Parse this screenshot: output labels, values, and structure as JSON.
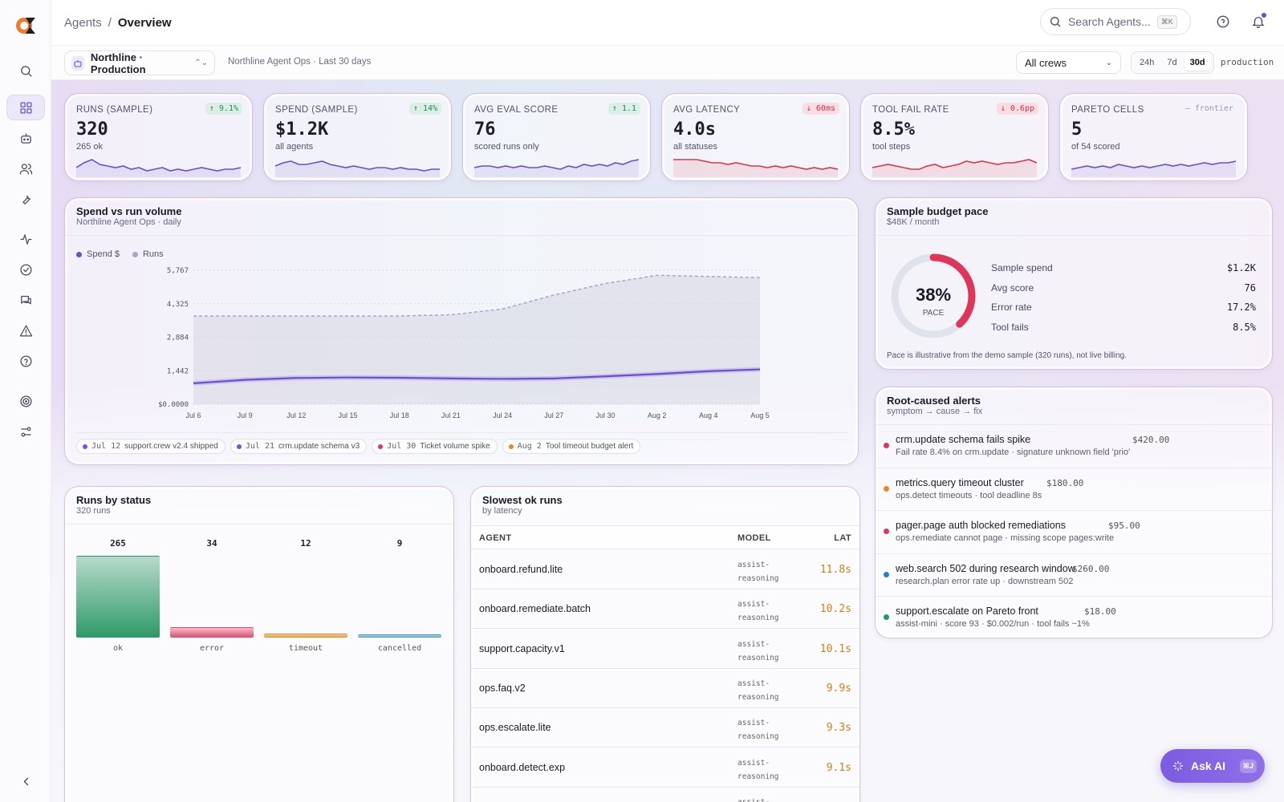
{
  "header": {
    "crumb_root": "Agents",
    "crumb_sep": "/",
    "crumb_current": "Overview",
    "search_placeholder": "Search Agents...",
    "search_shortcut": "⌘K"
  },
  "toolbar": {
    "project": "Northline · Production",
    "subtitle": "Northline Agent Ops · Last 30 days",
    "crew_filter": "All crews",
    "ranges": [
      "24h",
      "7d",
      "30d"
    ],
    "active_range": "30d",
    "environment": "production"
  },
  "kpis": [
    {
      "label": "RUNS (SAMPLE)",
      "value": "320",
      "note": "265 ok",
      "delta": "9.1%",
      "dir": "up",
      "arrow": "↑",
      "spark": [
        5,
        8,
        10,
        7,
        6,
        5,
        6,
        4,
        5,
        3,
        4,
        5,
        3,
        4,
        3,
        4,
        5,
        4,
        3,
        4,
        4,
        5
      ],
      "color": "#6b4fd1"
    },
    {
      "label": "SPEND (SAMPLE)",
      "value": "$1.2K",
      "note": "all agents",
      "delta": "14%",
      "dir": "up",
      "arrow": "↑",
      "spark": [
        6,
        8,
        9,
        7,
        7,
        8,
        9,
        7,
        6,
        5,
        6,
        5,
        4,
        5,
        5,
        4,
        5,
        4,
        4,
        3,
        4,
        4
      ],
      "color": "#6b4fd1"
    },
    {
      "label": "AVG EVAL SCORE",
      "value": "76",
      "note": "scored runs only",
      "delta": "1.1",
      "dir": "up",
      "arrow": "↑",
      "spark": [
        5,
        6,
        6,
        5,
        6,
        5,
        6,
        5,
        5,
        6,
        5,
        4,
        6,
        5,
        7,
        6,
        7,
        6,
        8,
        7,
        9,
        10
      ],
      "color": "#6b4fd1"
    },
    {
      "label": "AVG LATENCY",
      "value": "4.0s",
      "note": "all statuses",
      "delta": "60ms",
      "dir": "down",
      "arrow": "↓",
      "spark": [
        10,
        10,
        10,
        10,
        9,
        8,
        8,
        7,
        8,
        7,
        6,
        6,
        5,
        6,
        5,
        6,
        5,
        4,
        5,
        4,
        5,
        4
      ],
      "color": "#d8364f"
    },
    {
      "label": "TOOL FAIL RATE",
      "value": "8.5%",
      "note": "tool steps",
      "delta": "0.6pp",
      "dir": "down",
      "arrow": "↓",
      "spark": [
        5,
        6,
        7,
        6,
        5,
        4,
        4,
        6,
        7,
        5,
        6,
        7,
        9,
        8,
        9,
        8,
        7,
        8,
        8,
        9,
        10,
        8
      ],
      "color": "#d8364f"
    },
    {
      "label": "PARETO CELLS",
      "value": "5",
      "note": "of 54 scored",
      "delta": "frontier",
      "dir": "neutral",
      "arrow": "—",
      "spark": [
        4,
        5,
        6,
        5,
        6,
        5,
        7,
        6,
        5,
        6,
        5,
        6,
        7,
        6,
        7,
        6,
        7,
        8,
        7,
        8,
        8,
        9
      ],
      "color": "#6b4fd1"
    }
  ],
  "spend_chart": {
    "title": "Spend vs run volume",
    "subtitle": "Northline Agent Ops · daily",
    "legend": [
      {
        "name": "Spend $",
        "color": "#6b4fd1"
      },
      {
        "name": "Runs",
        "color": "#a5a8c2"
      }
    ],
    "events": [
      {
        "date": "Jul 12",
        "text": "support.crew v2.4 shipped",
        "color": "#7c4fe0"
      },
      {
        "date": "Jul 21",
        "text": "crm.update schema v3",
        "color": "#7c4fe0"
      },
      {
        "date": "Jul 30",
        "text": "Ticket volume spike",
        "color": "#e0355a"
      },
      {
        "date": "Aug 2",
        "text": "Tool timeout budget alert",
        "color": "#e58a1f"
      }
    ]
  },
  "chart_data": {
    "type": "area",
    "x": [
      "Jul 6",
      "Jul 9",
      "Jul 12",
      "Jul 15",
      "Jul 18",
      "Jul 21",
      "Jul 24",
      "Jul 27",
      "Jul 30",
      "Aug 2",
      "Aug 4",
      "Aug 5"
    ],
    "series": [
      {
        "name": "Runs",
        "values": [
          3800,
          3800,
          3800,
          3800,
          3800,
          3850,
          4100,
          4700,
          5200,
          5550,
          5500,
          5450
        ]
      },
      {
        "name": "Spend $",
        "values": [
          900,
          1050,
          1130,
          1150,
          1140,
          1110,
          1090,
          1110,
          1200,
          1300,
          1420,
          1500
        ]
      }
    ],
    "yticks": [
      "$0.0000",
      "1,442",
      "2,884",
      "4,325",
      "5,767"
    ],
    "ylim": [
      0,
      5767
    ],
    "legend": "top-left"
  },
  "budget": {
    "title": "Sample budget pace",
    "subtitle": "$48K / month",
    "pace_pct": 38,
    "pace_label": "38%",
    "pace_caption": "PACE",
    "rows": [
      {
        "k": "Sample spend",
        "v": "$1.2K"
      },
      {
        "k": "Avg score",
        "v": "76"
      },
      {
        "k": "Error rate",
        "v": "17.2%"
      },
      {
        "k": "Tool fails",
        "v": "8.5%"
      }
    ],
    "footnote": "Pace is illustrative from the demo sample (320 runs), not live billing."
  },
  "alerts": {
    "title": "Root-caused alerts",
    "subtitle": "symptom → cause → fix",
    "items": [
      {
        "title": "crm.update schema fails spike",
        "meta": "Fail rate 8.4% on crm.update · signature unknown field 'prio'",
        "amount": "$420.00",
        "color": "#e0355a"
      },
      {
        "title": "metrics.query timeout cluster",
        "meta": "ops.detect timeouts · tool deadline 8s",
        "amount": "$180.00",
        "color": "#e58a1f"
      },
      {
        "title": "pager.page auth blocked remediations",
        "meta": "ops.remediate cannot page · missing scope pages:write",
        "amount": "$95.00",
        "color": "#e0355a"
      },
      {
        "title": "web.search 502 during research window",
        "meta": "research.plan error rate up · downstream 502",
        "amount": "$260.00",
        "color": "#2481cc"
      },
      {
        "title": "support.escalate on Pareto front",
        "meta": "assist-mini · score 93 · $0.002/run · tool fails ~1%",
        "amount": "$18.00",
        "color": "#1e9a64"
      }
    ]
  },
  "status": {
    "title": "Runs by status",
    "subtitle": "320 runs",
    "bars": [
      {
        "label": "ok",
        "value": 265,
        "color": "#2e9968"
      },
      {
        "label": "error",
        "value": 34,
        "color": "#e0476a"
      },
      {
        "label": "timeout",
        "value": 12,
        "color": "#e58a1f"
      },
      {
        "label": "cancelled",
        "value": 9,
        "color": "#3b9ad6"
      }
    ]
  },
  "slowest": {
    "title": "Slowest ok runs",
    "subtitle": "by latency",
    "headers": {
      "agent": "AGENT",
      "model": "MODEL",
      "lat": "LAT"
    },
    "rows": [
      {
        "agent": "onboard.refund.lite",
        "model": "assist-reasoning",
        "lat": "11.8s"
      },
      {
        "agent": "onboard.remediate.batch",
        "model": "assist-reasoning",
        "lat": "10.2s"
      },
      {
        "agent": "support.capacity.v1",
        "model": "assist-reasoning",
        "lat": "10.1s"
      },
      {
        "agent": "ops.faq.v2",
        "model": "assist-reasoning",
        "lat": "9.9s"
      },
      {
        "agent": "ops.escalate.lite",
        "model": "assist-reasoning",
        "lat": "9.3s"
      },
      {
        "agent": "onboard.detect.exp",
        "model": "assist-reasoning",
        "lat": "9.1s"
      },
      {
        "agent": "",
        "model": "assist-",
        "lat": ""
      }
    ]
  },
  "ask_ai": {
    "label": "Ask AI",
    "shortcut": "⌘J"
  }
}
